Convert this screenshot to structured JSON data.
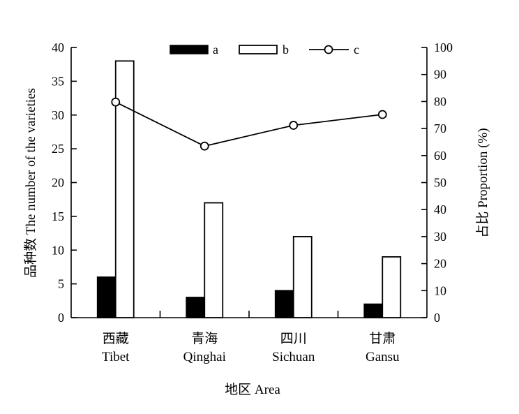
{
  "chart_data": {
    "type": "bar",
    "categories": [
      "西藏\nTibet",
      "青海\nQinghai",
      "四川\nSichuan",
      "甘肃\nGansu"
    ],
    "category_labels": [
      {
        "zh": "西藏",
        "en": "Tibet"
      },
      {
        "zh": "青海",
        "en": "Qinghai"
      },
      {
        "zh": "四川",
        "en": "Sichuan"
      },
      {
        "zh": "甘肃",
        "en": "Gansu"
      }
    ],
    "series": [
      {
        "name": "a",
        "type": "bar",
        "axis": "left",
        "fill": "#000000",
        "values": [
          6,
          3,
          4,
          2
        ]
      },
      {
        "name": "b",
        "type": "bar",
        "axis": "left",
        "fill": "#ffffff",
        "values": [
          38,
          17,
          12,
          9
        ]
      },
      {
        "name": "c",
        "type": "line",
        "axis": "right",
        "marker": "open-circle",
        "values": [
          79.8,
          63.5,
          71.2,
          75.2
        ]
      }
    ],
    "xlabel": "地区 Area",
    "ylabel": "品种数 The number of the varieties",
    "y2label": "占比 Proportion (%)",
    "ylim": [
      0,
      40
    ],
    "y2lim": [
      0,
      100
    ],
    "yticks": [
      0,
      5,
      10,
      15,
      20,
      25,
      30,
      35,
      40
    ],
    "y2ticks": [
      0,
      10,
      20,
      30,
      40,
      50,
      60,
      70,
      80,
      90,
      100
    ],
    "legend": {
      "placement": "top-center",
      "entries": [
        "a",
        "b",
        "c"
      ]
    },
    "grid": false
  }
}
